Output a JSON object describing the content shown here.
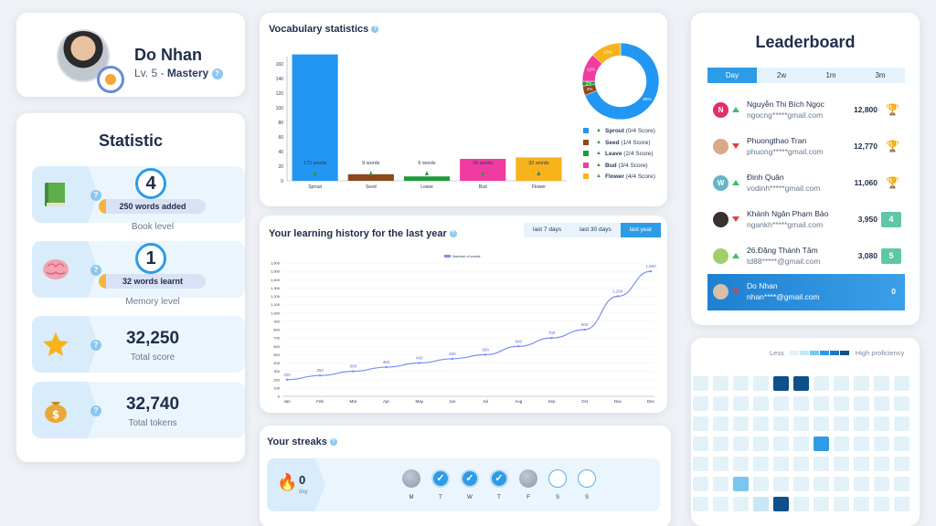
{
  "profile": {
    "name": "Do Nhan",
    "level_prefix": "Lv. 5 -",
    "level_name": "Mastery",
    "help": "?"
  },
  "statistic": {
    "title": "Statistic",
    "help": "?",
    "book": {
      "icon": "book-icon",
      "level": "4",
      "pill": "250 words added",
      "caption": "Book level"
    },
    "memory": {
      "icon": "brain-icon",
      "level": "1",
      "pill": "32 words learnt",
      "caption": "Memory level"
    },
    "score": {
      "icon": "star-icon",
      "value": "32,250",
      "caption": "Total score"
    },
    "tokens": {
      "icon": "money-bag-icon",
      "value": "32,740",
      "caption": "Total tokens"
    }
  },
  "vocab": {
    "title": "Vocabulary statistics",
    "help": "?"
  },
  "chart_data": [
    {
      "type": "bar",
      "categories": [
        "Sprout",
        "Seed",
        "Leave",
        "Bud",
        "Flower"
      ],
      "values": [
        173,
        9,
        6,
        30,
        32
      ],
      "data_labels": [
        "173 words",
        "9 words",
        "6 words",
        "30 words",
        "32 words"
      ],
      "colors": [
        "#2196f3",
        "#8b4a1c",
        "#1e9b3a",
        "#f03ca0",
        "#f7b21c"
      ],
      "yticks": [
        0,
        20,
        40,
        60,
        80,
        100,
        120,
        140,
        160
      ],
      "ylim": [
        0,
        170
      ]
    },
    {
      "type": "pie",
      "labels": [
        "Sprout (0/4 Score)",
        "Seed (1/4 Score)",
        "Leave (2/4 Score)",
        "Bud (3/4 Score)",
        "Flower (4/4 Score)"
      ],
      "values": [
        69,
        4,
        2,
        12,
        13
      ],
      "slice_labels": [
        "69%",
        "4%",
        "2%",
        "12%",
        "13%"
      ],
      "colors": [
        "#2196f3",
        "#8b4a1c",
        "#1e9b3a",
        "#f03ca0",
        "#f7b21c"
      ]
    },
    {
      "type": "line",
      "title": "Your learning history for the last year",
      "legend": "Number of words",
      "categories": [
        "Jan",
        "Feb",
        "Mar",
        "Apr",
        "May",
        "Jun",
        "Jul",
        "Aug",
        "Sep",
        "Oct",
        "Nov",
        "Dec"
      ],
      "values": [
        200,
        250,
        300,
        350,
        400,
        450,
        500,
        600,
        700,
        800,
        1200,
        1500
      ],
      "yticks": [
        0,
        100,
        200,
        300,
        400,
        500,
        600,
        700,
        800,
        900,
        1000,
        1100,
        1200,
        1300,
        1400,
        1500,
        1600
      ],
      "ylim": [
        0,
        1600
      ],
      "color": "#7a8ef0"
    }
  ],
  "history": {
    "title": "Your learning history for the last year",
    "help": "?",
    "tabs": [
      "last 7 days",
      "last 30 days",
      "last year"
    ],
    "active_tab": "last year"
  },
  "streaks": {
    "title": "Your streaks",
    "help": "?",
    "count": "0",
    "unit": "day",
    "days": [
      {
        "label": "M",
        "state": "missed"
      },
      {
        "label": "T",
        "state": "done"
      },
      {
        "label": "W",
        "state": "done"
      },
      {
        "label": "T",
        "state": "done"
      },
      {
        "label": "F",
        "state": "missed"
      },
      {
        "label": "S",
        "state": "empty"
      },
      {
        "label": "S",
        "state": "empty"
      }
    ]
  },
  "leaderboard": {
    "title": "Leaderboard",
    "tabs": [
      "Day",
      "2w",
      "1m",
      "3m"
    ],
    "active_tab": "Day",
    "rows": [
      {
        "avatar": "N",
        "avatar_color": "#e0306a",
        "trend": "up",
        "name": "Nguyễn Thị Bích Ngọc",
        "email": "ngocng*****gmail.com",
        "score": "12,800",
        "badge": "gold-trophy-icon"
      },
      {
        "avatar": "",
        "avatar_color": "#d9a98a",
        "trend": "down",
        "name": "Phuongthao Tran",
        "email": "phuong*****gmail.com",
        "score": "12,770",
        "badge": "silver-trophy-icon"
      },
      {
        "avatar": "W",
        "avatar_color": "#64b6c8",
        "trend": "up",
        "name": "Đinh Quân",
        "email": "vodinh*****gmail.com",
        "score": "11,060",
        "badge": "bronze-trophy-icon"
      },
      {
        "avatar": "",
        "avatar_color": "#3a3030",
        "trend": "down",
        "name": "Khánh Ngân Phạm Bảo",
        "email": "ngankh*****gmail.com",
        "score": "3,950",
        "rank": "4"
      },
      {
        "avatar": "",
        "avatar_color": "#9fcf6a",
        "trend": "up",
        "name": "26.Đặng Thành Tâm",
        "email": "td88*****@gmail.com",
        "score": "3,080",
        "rank": "5"
      }
    ],
    "me": {
      "name": "Do Nhan",
      "email": "nhan****@gmail.com",
      "score": "0",
      "trend": "down"
    }
  },
  "heatmap": {
    "less": "Less",
    "more": "High proficiency",
    "scale_colors": [
      "#e3f1f8",
      "#c9e6f4",
      "#7ac6ef",
      "#2e9be6",
      "#1f76c9",
      "#0f4f8a"
    ],
    "rows": [
      [
        0,
        0,
        0,
        0,
        5,
        5,
        0,
        0,
        0,
        0,
        0
      ],
      [
        0,
        0,
        0,
        0,
        0,
        0,
        0,
        0,
        0,
        0,
        0
      ],
      [
        0,
        0,
        0,
        0,
        0,
        0,
        0,
        0,
        0,
        0,
        0
      ],
      [
        0,
        0,
        0,
        0,
        0,
        0,
        3,
        0,
        0,
        0,
        0
      ],
      [
        0,
        0,
        0,
        0,
        0,
        0,
        0,
        0,
        0,
        0,
        0
      ],
      [
        0,
        0,
        2,
        0,
        0,
        0,
        0,
        0,
        0,
        0,
        0
      ],
      [
        0,
        0,
        0,
        1,
        5,
        0,
        0,
        0,
        0,
        0,
        0
      ]
    ]
  }
}
